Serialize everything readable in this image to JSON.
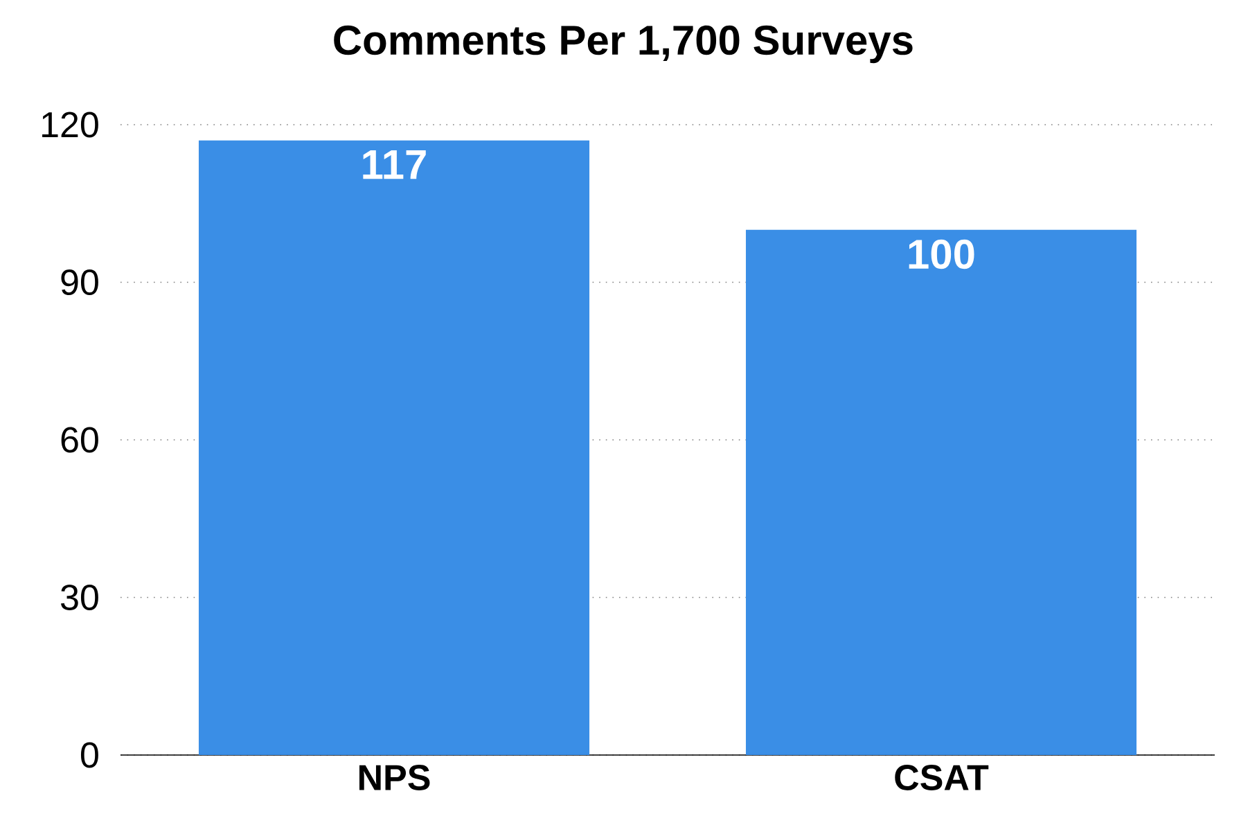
{
  "chart_data": {
    "type": "bar",
    "title": "Comments Per 1,700 Surveys",
    "categories": [
      "NPS",
      "CSAT"
    ],
    "values": [
      117,
      100
    ],
    "color": "#3a8ee6",
    "data_labels": true,
    "ylim": [
      0,
      120
    ],
    "yticks": [
      0,
      30,
      60,
      90,
      120
    ],
    "grid": "y"
  }
}
